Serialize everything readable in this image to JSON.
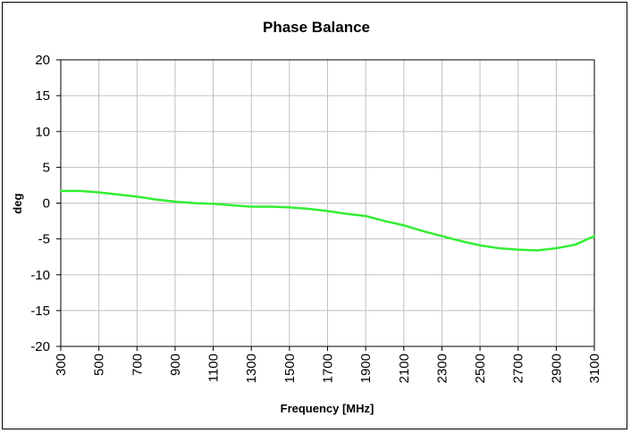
{
  "chart_data": {
    "type": "line",
    "title": "Phase Balance",
    "xlabel": "Frequency [MHz]",
    "ylabel": "deg",
    "xlim": [
      300,
      3100
    ],
    "ylim": [
      -20,
      20
    ],
    "x_ticks": [
      "300",
      "500",
      "700",
      "900",
      "1100",
      "1300",
      "1500",
      "1700",
      "1900",
      "2100",
      "2300",
      "2500",
      "2700",
      "2900",
      "3100"
    ],
    "y_ticks": [
      "20",
      "15",
      "10",
      "5",
      "0",
      "-5",
      "-10",
      "-15",
      "-20"
    ],
    "grid": true,
    "legend": false,
    "series": [
      {
        "color": "#33ee33",
        "x": [
          300,
          400,
          500,
          600,
          700,
          800,
          900,
          1000,
          1100,
          1200,
          1300,
          1400,
          1500,
          1600,
          1700,
          1800,
          1900,
          2000,
          2100,
          2200,
          2300,
          2400,
          2500,
          2600,
          2700,
          2800,
          2900,
          3000,
          3100
        ],
        "y": [
          1.7,
          1.7,
          1.5,
          1.2,
          0.9,
          0.5,
          0.2,
          0.0,
          -0.1,
          -0.3,
          -0.5,
          -0.5,
          -0.6,
          -0.8,
          -1.1,
          -1.5,
          -1.8,
          -2.5,
          -3.1,
          -3.9,
          -4.6,
          -5.3,
          -5.9,
          -6.3,
          -6.5,
          -6.6,
          -6.3,
          -5.8,
          -4.6
        ]
      }
    ]
  }
}
